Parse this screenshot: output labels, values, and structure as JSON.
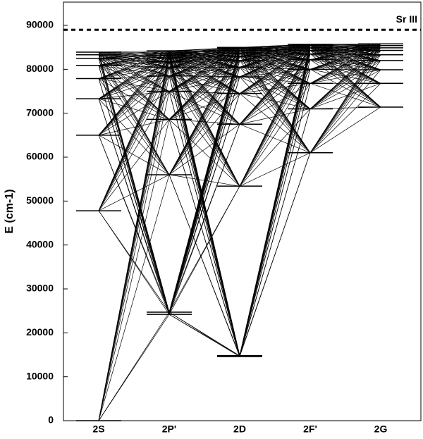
{
  "chart_data": {
    "type": "grotrian",
    "y_label": "E (cm-1)",
    "categories": [
      "2S",
      "2P'",
      "2D",
      "2F'",
      "2G"
    ],
    "levels": [
      [
        0,
        47800,
        65000,
        73300,
        77900,
        80900,
        82500,
        83300,
        83900
      ],
      [
        24200,
        24700,
        56000,
        68600,
        75000,
        78500,
        80500,
        81700,
        82600,
        83200,
        83700,
        84200
      ],
      [
        14600,
        14800,
        53400,
        67500,
        74500,
        78300,
        80500,
        82000,
        83000,
        83700,
        84300,
        84800,
        85000
      ],
      [
        61000,
        71000,
        76800,
        80000,
        82200,
        83500,
        84300,
        84900,
        85400,
        85700
      ],
      [
        71400,
        76800,
        79900,
        82000,
        83300,
        84300,
        84900,
        85400,
        85800
      ]
    ],
    "limit": {
      "label": "Sr III",
      "value": 89000
    },
    "ylim": [
      0,
      95300
    ],
    "yticks": [
      0,
      10000,
      20000,
      30000,
      40000,
      50000,
      60000,
      70000,
      80000,
      90000
    ]
  }
}
